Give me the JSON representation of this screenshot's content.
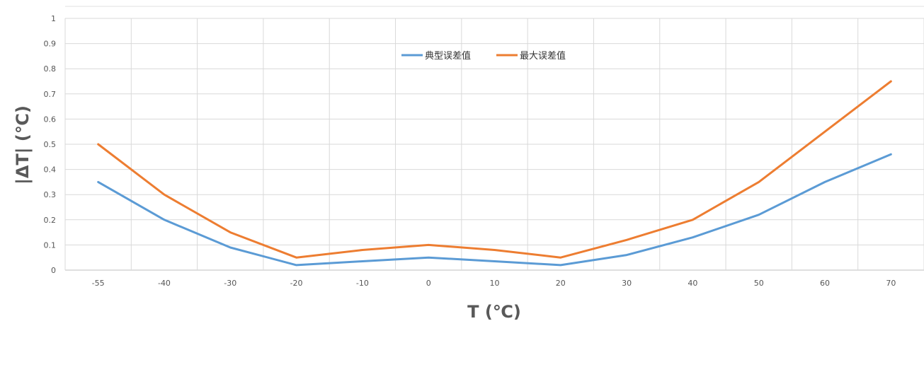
{
  "chart_data": {
    "type": "line",
    "title": "",
    "xlabel": "T (℃)",
    "ylabel": "|ΔT| (℃)",
    "categories": [
      "-55",
      "-40",
      "-30",
      "-20",
      "-10",
      "0",
      "10",
      "20",
      "30",
      "40",
      "50",
      "60",
      "70"
    ],
    "ylim": [
      0,
      1
    ],
    "yticks": [
      "0",
      "0.1",
      "0.2",
      "0.3",
      "0.4",
      "0.5",
      "0.6",
      "0.7",
      "0.8",
      "0.9",
      "1"
    ],
    "grid": true,
    "legend_position": "top-center",
    "series": [
      {
        "name": "典型误差值",
        "color": "#5b9bd5",
        "values": [
          0.35,
          0.2,
          0.09,
          0.02,
          0.035,
          0.05,
          0.035,
          0.02,
          0.06,
          0.13,
          0.22,
          0.35,
          0.46
        ]
      },
      {
        "name": "最大误差值",
        "color": "#ed7d31",
        "values": [
          0.5,
          0.3,
          0.15,
          0.05,
          0.08,
          0.1,
          0.08,
          0.05,
          0.12,
          0.2,
          0.35,
          0.55,
          0.75
        ]
      }
    ]
  }
}
